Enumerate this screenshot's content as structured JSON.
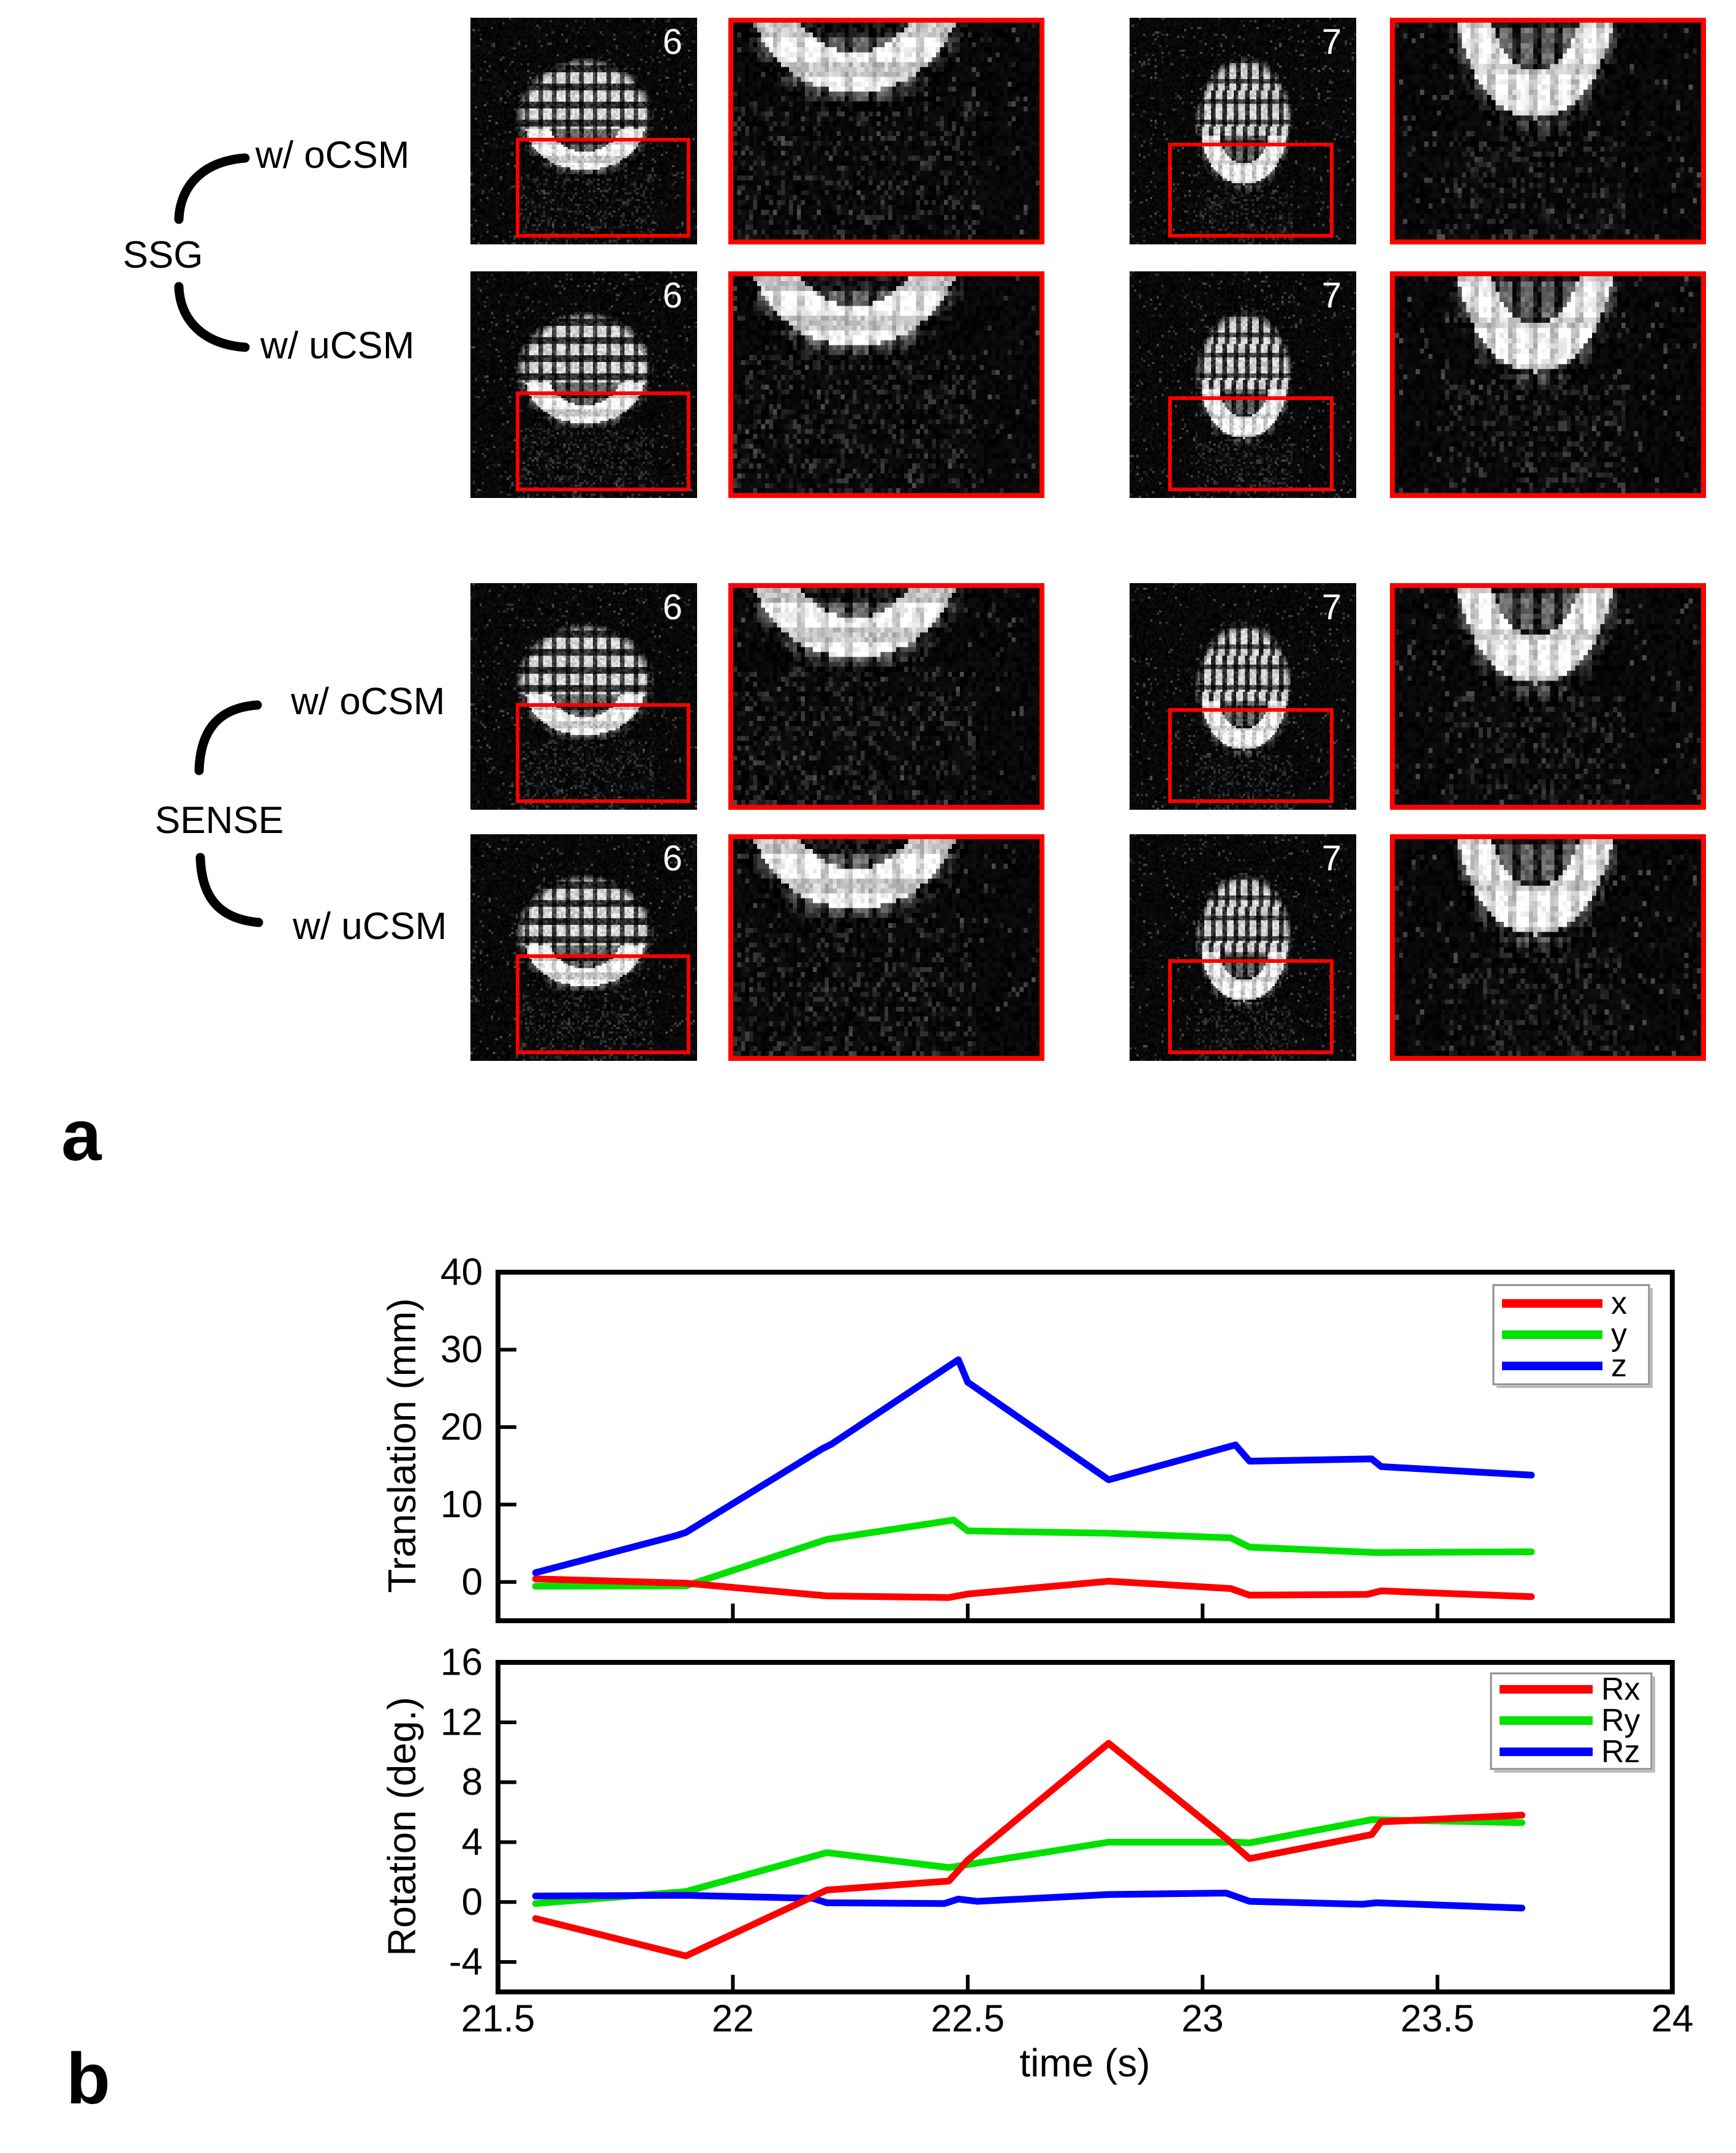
{
  "panel_a": {
    "label": "a",
    "groups": [
      {
        "name": "SSG",
        "rows": [
          {
            "label": "w/ oCSM"
          },
          {
            "label": "w/ uCSM"
          }
        ]
      },
      {
        "name": "SENSE",
        "rows": [
          {
            "label": "w/ oCSM"
          },
          {
            "label": "w/ uCSM"
          }
        ]
      }
    ],
    "slices": [
      "6",
      "7"
    ],
    "roi_color": "#ff0000",
    "image_background": "#000000",
    "slice_number_color": "#ffffff"
  },
  "panel_b": {
    "label": "b"
  },
  "chart_data": [
    {
      "type": "line",
      "title": "",
      "ylabel": "Translation (mm)",
      "xlabel": "",
      "xlim": [
        21.5,
        24
      ],
      "ylim": [
        -5,
        40
      ],
      "yticks": [
        0,
        10,
        20,
        30,
        40
      ],
      "xticks": [
        21.5,
        22,
        22.5,
        23,
        23.5,
        24
      ],
      "xtick_labels_visible": false,
      "grid": false,
      "legend_position": "top-right",
      "draw_order": [
        1,
        0,
        2
      ],
      "series": [
        {
          "name": "x",
          "color": "#ff0000",
          "points": [
            [
              21.58,
              0.4
            ],
            [
              21.9,
              -0.15
            ],
            [
              22.2,
              -1.8
            ],
            [
              22.46,
              -2.0
            ],
            [
              22.5,
              -1.55
            ],
            [
              22.8,
              0.1
            ],
            [
              23.06,
              -0.85
            ],
            [
              23.1,
              -1.7
            ],
            [
              23.35,
              -1.6
            ],
            [
              23.38,
              -1.15
            ],
            [
              23.7,
              -1.9
            ]
          ]
        },
        {
          "name": "y",
          "color": "#00e100",
          "points": [
            [
              21.58,
              -0.55
            ],
            [
              21.9,
              -0.5
            ],
            [
              22.2,
              5.5
            ],
            [
              22.47,
              8.0
            ],
            [
              22.5,
              6.6
            ],
            [
              22.8,
              6.3
            ],
            [
              23.06,
              5.7
            ],
            [
              23.1,
              4.5
            ],
            [
              23.37,
              3.8
            ],
            [
              23.7,
              3.9
            ]
          ]
        },
        {
          "name": "z",
          "color": "#0000ff",
          "points": [
            [
              21.58,
              1.2
            ],
            [
              21.88,
              6.0
            ],
            [
              21.9,
              6.4
            ],
            [
              22.19,
              17.2
            ],
            [
              22.21,
              17.8
            ],
            [
              22.48,
              28.7
            ],
            [
              22.5,
              25.8
            ],
            [
              22.8,
              13.2
            ],
            [
              23.07,
              17.7
            ],
            [
              23.1,
              15.6
            ],
            [
              23.36,
              15.9
            ],
            [
              23.38,
              14.9
            ],
            [
              23.7,
              13.8
            ]
          ]
        }
      ]
    },
    {
      "type": "line",
      "title": "",
      "ylabel": "Rotation (deg.)",
      "xlabel": "time (s)",
      "xlim": [
        21.5,
        24
      ],
      "ylim": [
        -6,
        16
      ],
      "yticks": [
        -4,
        0,
        4,
        8,
        12,
        16
      ],
      "xticks": [
        21.5,
        22,
        22.5,
        23,
        23.5,
        24
      ],
      "xtick_labels_visible": true,
      "grid": false,
      "legend_position": "top-right",
      "draw_order": [
        1,
        2,
        0
      ],
      "series": [
        {
          "name": "Rx",
          "color": "#ff0000",
          "points": [
            [
              21.58,
              -1.1
            ],
            [
              21.9,
              -3.6
            ],
            [
              22.2,
              0.8
            ],
            [
              22.46,
              1.4
            ],
            [
              22.5,
              2.8
            ],
            [
              22.8,
              10.6
            ],
            [
              23.06,
              4.0
            ],
            [
              23.1,
              2.9
            ],
            [
              23.36,
              4.5
            ],
            [
              23.38,
              5.35
            ],
            [
              23.68,
              5.8
            ]
          ]
        },
        {
          "name": "Ry",
          "color": "#00e100",
          "points": [
            [
              21.58,
              -0.1
            ],
            [
              21.9,
              0.7
            ],
            [
              22.2,
              3.3
            ],
            [
              22.46,
              2.3
            ],
            [
              22.5,
              2.5
            ],
            [
              22.8,
              4.0
            ],
            [
              23.07,
              4.0
            ],
            [
              23.1,
              3.95
            ],
            [
              23.36,
              5.5
            ],
            [
              23.68,
              5.3
            ]
          ]
        },
        {
          "name": "Rz",
          "color": "#0000ff",
          "points": [
            [
              21.58,
              0.4
            ],
            [
              21.9,
              0.45
            ],
            [
              22.17,
              0.25
            ],
            [
              22.2,
              -0.05
            ],
            [
              22.45,
              -0.1
            ],
            [
              22.48,
              0.2
            ],
            [
              22.52,
              0.05
            ],
            [
              22.8,
              0.5
            ],
            [
              23.05,
              0.6
            ],
            [
              23.1,
              0.05
            ],
            [
              23.34,
              -0.15
            ],
            [
              23.37,
              -0.05
            ],
            [
              23.68,
              -0.4
            ]
          ]
        }
      ]
    }
  ]
}
